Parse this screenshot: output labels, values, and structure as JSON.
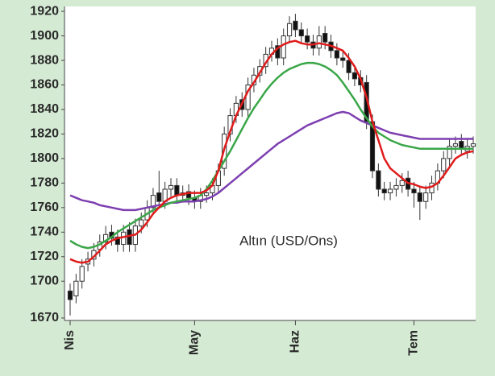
{
  "chart_data": {
    "type": "candlestick",
    "annotation": "Altın (USD/Ons)",
    "categories": [
      "Nis",
      null,
      null,
      null,
      null,
      null,
      null,
      null,
      null,
      null,
      null,
      null,
      null,
      null,
      null,
      null,
      null,
      null,
      null,
      null,
      null,
      "May",
      null,
      null,
      null,
      null,
      null,
      null,
      null,
      null,
      null,
      null,
      null,
      null,
      null,
      null,
      null,
      null,
      "Haz",
      null,
      null,
      null,
      null,
      null,
      null,
      null,
      null,
      null,
      null,
      null,
      null,
      null,
      null,
      null,
      null,
      null,
      null,
      null,
      "Tem",
      null,
      null,
      null,
      null,
      null,
      null,
      null,
      null,
      null,
      null
    ],
    "ohlc": {
      "open": [
        1692,
        1688,
        1700,
        1714,
        1718,
        1726,
        1732,
        1740,
        1736,
        1730,
        1742,
        1730,
        1745,
        1750,
        1760,
        1772,
        1765,
        1775,
        1778,
        1770,
        1773,
        1768,
        1765,
        1770,
        1772,
        1778,
        1792,
        1820,
        1835,
        1848,
        1840,
        1860,
        1868,
        1875,
        1885,
        1892,
        1882,
        1900,
        1912,
        1905,
        1900,
        1895,
        1890,
        1902,
        1895,
        1888,
        1882,
        1880,
        1870,
        1866,
        1862,
        1830,
        1790,
        1775,
        1772,
        1775,
        1778,
        1784,
        1775,
        1772,
        1765,
        1772,
        1780,
        1790,
        1800,
        1810,
        1814,
        1806,
        1810
      ],
      "high": [
        1698,
        1706,
        1718,
        1724,
        1731,
        1738,
        1745,
        1746,
        1742,
        1746,
        1748,
        1751,
        1756,
        1766,
        1776,
        1790,
        1781,
        1784,
        1784,
        1778,
        1779,
        1774,
        1776,
        1778,
        1784,
        1796,
        1826,
        1841,
        1851,
        1854,
        1866,
        1874,
        1881,
        1891,
        1896,
        1898,
        1906,
        1916,
        1918,
        1911,
        1906,
        1901,
        1908,
        1908,
        1901,
        1894,
        1888,
        1886,
        1876,
        1872,
        1868,
        1836,
        1796,
        1781,
        1781,
        1784,
        1788,
        1790,
        1781,
        1778,
        1778,
        1786,
        1796,
        1806,
        1816,
        1818,
        1820,
        1816,
        1818
      ],
      "low": [
        1672,
        1682,
        1694,
        1708,
        1712,
        1720,
        1726,
        1729,
        1724,
        1724,
        1724,
        1724,
        1739,
        1744,
        1754,
        1759,
        1759,
        1769,
        1764,
        1764,
        1762,
        1759,
        1759,
        1764,
        1766,
        1772,
        1786,
        1814,
        1829,
        1834,
        1834,
        1854,
        1862,
        1869,
        1879,
        1876,
        1876,
        1894,
        1899,
        1894,
        1889,
        1884,
        1884,
        1889,
        1882,
        1876,
        1874,
        1864,
        1859,
        1854,
        1824,
        1784,
        1769,
        1766,
        1766,
        1769,
        1772,
        1769,
        1760,
        1750,
        1759,
        1766,
        1774,
        1784,
        1794,
        1804,
        1802,
        1800,
        1804
      ],
      "close": [
        1685,
        1700,
        1712,
        1718,
        1725,
        1732,
        1738,
        1735,
        1730,
        1740,
        1730,
        1745,
        1750,
        1760,
        1770,
        1765,
        1775,
        1778,
        1770,
        1772,
        1768,
        1765,
        1770,
        1772,
        1778,
        1790,
        1820,
        1835,
        1845,
        1840,
        1860,
        1868,
        1875,
        1885,
        1890,
        1882,
        1900,
        1910,
        1905,
        1900,
        1895,
        1890,
        1900,
        1895,
        1888,
        1882,
        1880,
        1870,
        1865,
        1860,
        1830,
        1790,
        1775,
        1772,
        1775,
        1778,
        1782,
        1775,
        1772,
        1765,
        1772,
        1780,
        1790,
        1800,
        1810,
        1812,
        1808,
        1810,
        1812
      ]
    },
    "moving_averages": [
      {
        "color": "#7d3fb0",
        "values": [
          1770,
          1768,
          1766,
          1765,
          1764,
          1762,
          1761,
          1760,
          1759,
          1758,
          1758,
          1758,
          1759,
          1760,
          1761,
          1762,
          1763,
          1764,
          1764,
          1765,
          1765,
          1765,
          1766,
          1767,
          1769,
          1772,
          1776,
          1780,
          1784,
          1788,
          1792,
          1796,
          1800,
          1804,
          1808,
          1812,
          1815,
          1818,
          1821,
          1824,
          1827,
          1829,
          1831,
          1833,
          1835,
          1837,
          1838,
          1837,
          1834,
          1831,
          1829,
          1827,
          1825,
          1823,
          1821,
          1820,
          1819,
          1818,
          1817,
          1816,
          1816,
          1816,
          1816,
          1816,
          1816,
          1816,
          1816,
          1816,
          1816
        ]
      },
      {
        "color": "#3aa648",
        "values": [
          1733,
          1730,
          1728,
          1727,
          1728,
          1730,
          1733,
          1736,
          1740,
          1743,
          1746,
          1749,
          1752,
          1755,
          1758,
          1760,
          1762,
          1764,
          1765,
          1766,
          1767,
          1768,
          1770,
          1775,
          1782,
          1790,
          1798,
          1806,
          1815,
          1824,
          1833,
          1841,
          1848,
          1855,
          1861,
          1866,
          1870,
          1873,
          1875,
          1877,
          1878,
          1878,
          1877,
          1875,
          1872,
          1868,
          1862,
          1855,
          1848,
          1840,
          1833,
          1826,
          1821,
          1818,
          1815,
          1813,
          1811,
          1810,
          1809,
          1808,
          1808,
          1808,
          1808,
          1808,
          1808,
          1808,
          1808,
          1808,
          1808
        ]
      },
      {
        "color": "#e01b1b",
        "values": [
          1718,
          1716,
          1715,
          1716,
          1720,
          1725,
          1730,
          1733,
          1735,
          1736,
          1737,
          1738,
          1742,
          1748,
          1755,
          1760,
          1765,
          1768,
          1770,
          1771,
          1772,
          1772,
          1772,
          1774,
          1778,
          1790,
          1808,
          1822,
          1835,
          1845,
          1855,
          1862,
          1870,
          1878,
          1885,
          1890,
          1893,
          1895,
          1896,
          1894,
          1893,
          1893,
          1894,
          1893,
          1892,
          1890,
          1888,
          1882,
          1875,
          1865,
          1850,
          1830,
          1815,
          1800,
          1792,
          1788,
          1784,
          1780,
          1779,
          1777,
          1776,
          1777,
          1780,
          1786,
          1793,
          1800,
          1803,
          1805,
          1806
        ]
      }
    ],
    "ylim": [
      1668,
      1924
    ],
    "yticks": [
      1920,
      1900,
      1880,
      1860,
      1840,
      1820,
      1800,
      1780,
      1760,
      1740,
      1720,
      1700,
      1670
    ]
  }
}
